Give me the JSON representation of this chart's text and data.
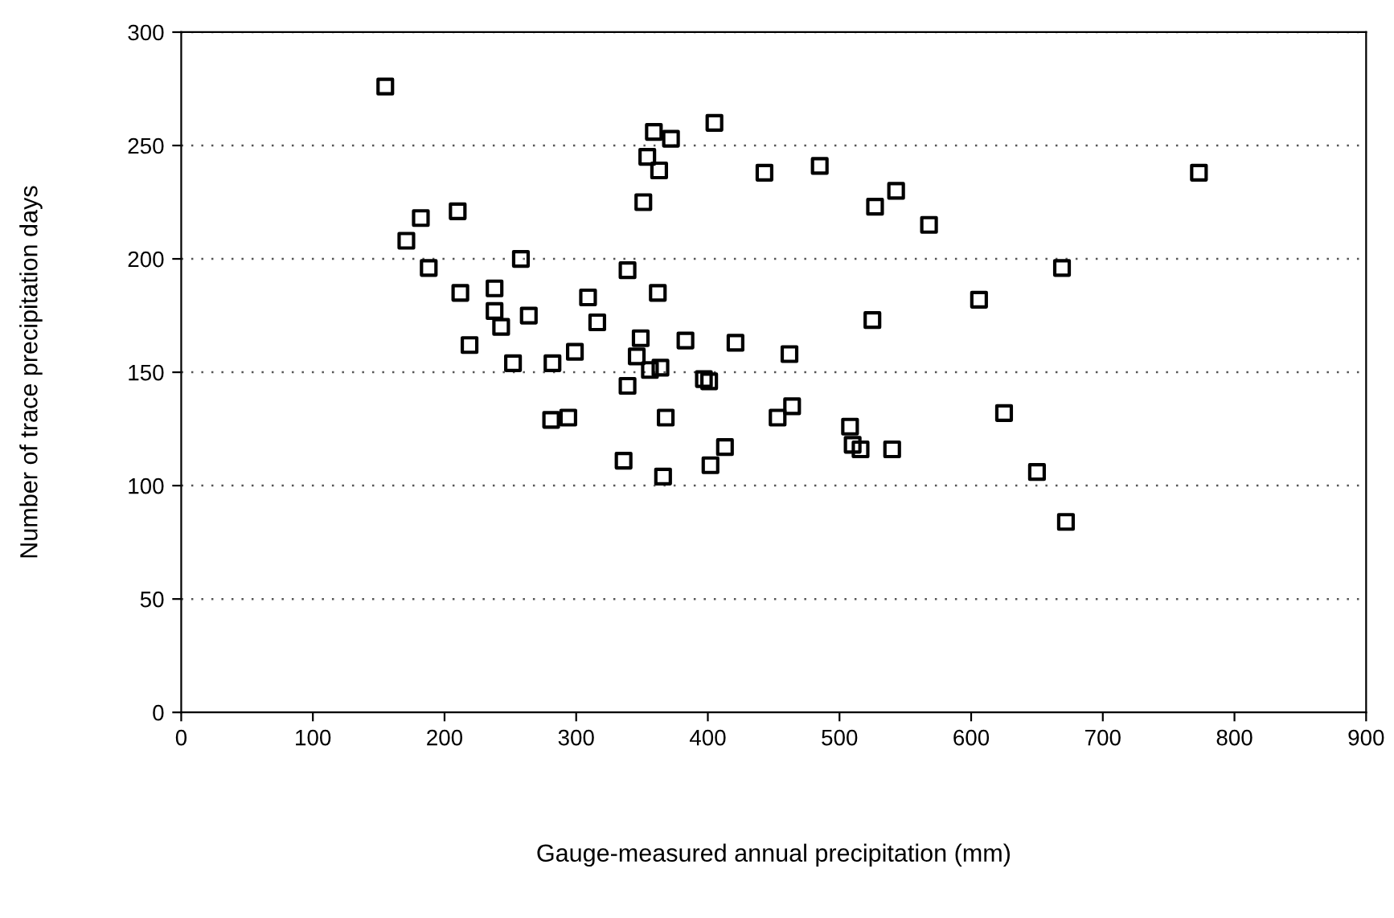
{
  "chart_data": {
    "type": "scatter",
    "xlabel": "Gauge-measured annual precipitation (mm)",
    "ylabel": "Number of trace precipitation days",
    "x": [
      155,
      405,
      359,
      372,
      354,
      363,
      351,
      210,
      182,
      171,
      258,
      188,
      339,
      212,
      238,
      362,
      309,
      238,
      264,
      243,
      316,
      219,
      349,
      383,
      421,
      299,
      252,
      282,
      346,
      356,
      364,
      339,
      397,
      401,
      281,
      294,
      368,
      413,
      336,
      402,
      366,
      443,
      485,
      773,
      543,
      527,
      568,
      669,
      606,
      525,
      462,
      464,
      453,
      625,
      508,
      510,
      516,
      540,
      650,
      672
    ],
    "values": [
      276,
      260,
      256,
      253,
      245,
      239,
      225,
      221,
      218,
      208,
      200,
      196,
      195,
      185,
      187,
      185,
      183,
      177,
      175,
      170,
      172,
      162,
      165,
      164,
      163,
      159,
      154,
      154,
      157,
      151,
      152,
      144,
      147,
      146,
      129,
      130,
      130,
      117,
      111,
      109,
      104,
      238,
      241,
      238,
      230,
      223,
      215,
      196,
      182,
      173,
      158,
      135,
      130,
      132,
      126,
      118,
      116,
      116,
      106,
      84
    ],
    "color": "#000000",
    "marker": "square",
    "xlim": [
      0,
      900
    ],
    "xticks": [
      0,
      100,
      200,
      300,
      400,
      500,
      600,
      700,
      800,
      900
    ],
    "ylim": [
      0,
      300
    ],
    "yticks": [
      0,
      50,
      100,
      150,
      200,
      250,
      300
    ],
    "grid": "y",
    "legend": false
  }
}
